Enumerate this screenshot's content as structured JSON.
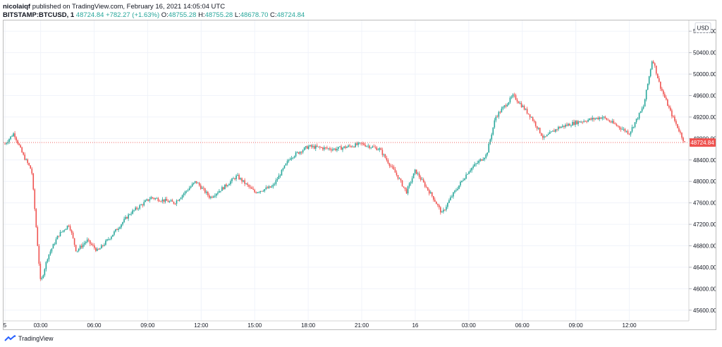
{
  "header": {
    "author": "nicolaiqf",
    "published_text": "published on TradingView.com, February 16, 2021 14:05:04 UTC",
    "symbol": "BITSTAMP:BTCUSD, 1",
    "last_price": "48724.84",
    "change": "+782.27 (+1.63%)",
    "open_label": "O:",
    "open": "48755.28",
    "high_label": "H:",
    "high": "48755.28",
    "low_label": "L:",
    "low": "48678.70",
    "close_label": "C:",
    "close": "48724.84"
  },
  "footer": {
    "brand": "TradingView"
  },
  "colors": {
    "up": "#26a69a",
    "down": "#ef5350",
    "price_line": "#ef5350",
    "grid": "#f0f3fa"
  },
  "chart_data": {
    "type": "candlestick",
    "currency_label": "USD",
    "current_price_label": "48724.84",
    "current_price": 48724.84,
    "ylim": [
      45400,
      51000
    ],
    "y_ticks": [
      "45600.00",
      "46000.00",
      "46400.00",
      "46800.00",
      "47200.00",
      "47600.00",
      "48000.00",
      "48400.00",
      "48800.00",
      "49200.00",
      "49600.00",
      "50000.00",
      "50400.00",
      "50800.00"
    ],
    "x_ticks": [
      "5",
      "03:00",
      "06:00",
      "09:00",
      "12:00",
      "15:00",
      "18:00",
      "21:00",
      "16",
      "03:00",
      "06:00",
      "09:00",
      "12:00"
    ],
    "x_range_hours": [
      0,
      38.1
    ],
    "x_tick_hours": [
      0,
      2,
      5,
      8,
      11,
      14,
      17,
      20,
      23,
      26,
      29,
      32,
      35
    ],
    "price_path": [
      {
        "h": 0.0,
        "p": 48700
      },
      {
        "h": 0.5,
        "p": 48900
      },
      {
        "h": 1.0,
        "p": 48500
      },
      {
        "h": 1.5,
        "p": 48200
      },
      {
        "h": 2.0,
        "p": 46100
      },
      {
        "h": 2.4,
        "p": 46600
      },
      {
        "h": 3.0,
        "p": 47000
      },
      {
        "h": 3.6,
        "p": 47200
      },
      {
        "h": 4.0,
        "p": 46700
      },
      {
        "h": 4.6,
        "p": 46900
      },
      {
        "h": 5.2,
        "p": 46700
      },
      {
        "h": 6.0,
        "p": 47000
      },
      {
        "h": 7.0,
        "p": 47400
      },
      {
        "h": 8.2,
        "p": 47700
      },
      {
        "h": 9.5,
        "p": 47600
      },
      {
        "h": 10.7,
        "p": 48000
      },
      {
        "h": 11.5,
        "p": 47700
      },
      {
        "h": 12.3,
        "p": 47900
      },
      {
        "h": 13.0,
        "p": 48100
      },
      {
        "h": 14.0,
        "p": 47800
      },
      {
        "h": 15.0,
        "p": 47900
      },
      {
        "h": 16.0,
        "p": 48450
      },
      {
        "h": 17.0,
        "p": 48650
      },
      {
        "h": 18.5,
        "p": 48600
      },
      {
        "h": 20.0,
        "p": 48700
      },
      {
        "h": 21.0,
        "p": 48600
      },
      {
        "h": 22.0,
        "p": 48100
      },
      {
        "h": 22.5,
        "p": 47800
      },
      {
        "h": 23.0,
        "p": 48200
      },
      {
        "h": 24.0,
        "p": 47700
      },
      {
        "h": 24.5,
        "p": 47400
      },
      {
        "h": 25.0,
        "p": 47700
      },
      {
        "h": 26.0,
        "p": 48200
      },
      {
        "h": 27.0,
        "p": 48500
      },
      {
        "h": 27.5,
        "p": 49200
      },
      {
        "h": 28.5,
        "p": 49600
      },
      {
        "h": 29.5,
        "p": 49200
      },
      {
        "h": 30.2,
        "p": 48800
      },
      {
        "h": 31.0,
        "p": 49000
      },
      {
        "h": 32.0,
        "p": 49100
      },
      {
        "h": 33.5,
        "p": 49200
      },
      {
        "h": 35.0,
        "p": 48900
      },
      {
        "h": 35.8,
        "p": 49400
      },
      {
        "h": 36.3,
        "p": 50300
      },
      {
        "h": 36.7,
        "p": 49800
      },
      {
        "h": 37.3,
        "p": 49300
      },
      {
        "h": 38.1,
        "p": 48724.84
      }
    ]
  }
}
